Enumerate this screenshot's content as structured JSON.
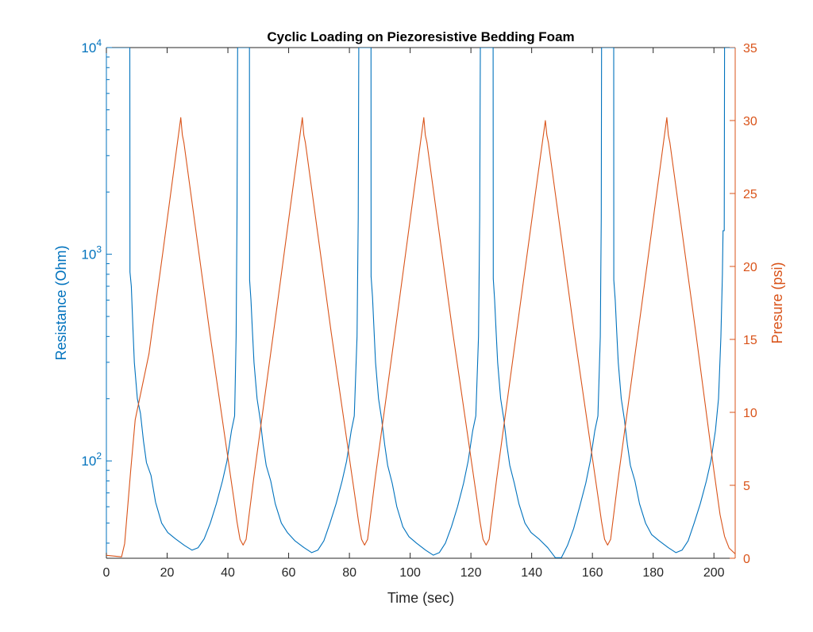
{
  "chart_data": {
    "type": "line",
    "title": "Cyclic Loading on Piezoresistive Bedding Foam",
    "xlabel": "Time (sec)",
    "ylabel_left": "Resistance (Ohm)",
    "ylabel_right": "Presure (psi)",
    "xlim": [
      0,
      207
    ],
    "ylim_left": [
      33.8,
      10000
    ],
    "yscale_left": "log",
    "ylim_right": [
      0,
      35
    ],
    "grid": false,
    "x_ticks": [
      "0",
      "20",
      "40",
      "60",
      "80",
      "100",
      "120",
      "140",
      "160",
      "180",
      "200"
    ],
    "x_tick_values": [
      0,
      20,
      40,
      60,
      80,
      100,
      120,
      140,
      160,
      180,
      200
    ],
    "left_ticks": [
      {
        "base": "10",
        "exp": "2",
        "value": 100
      },
      {
        "base": "10",
        "exp": "3",
        "value": 1000
      },
      {
        "base": "10",
        "exp": "4",
        "value": 10000
      }
    ],
    "right_ticks": [
      "0",
      "5",
      "10",
      "15",
      "20",
      "25",
      "30",
      "35"
    ],
    "right_tick_values": [
      0,
      5,
      10,
      15,
      20,
      25,
      30,
      35
    ],
    "colors": {
      "resistance": "#0072BD",
      "pressure": "#D95319",
      "axis": "#262626"
    },
    "series": [
      {
        "axis": "left",
        "color": "#0072BD",
        "points": [
          [
            0,
            10000
          ],
          [
            7.7,
            10000
          ],
          [
            7.75,
            820
          ],
          [
            8.2,
            700
          ],
          [
            8.7,
            450
          ],
          [
            9.2,
            300
          ],
          [
            10.2,
            200
          ],
          [
            11.2,
            170
          ],
          [
            12.2,
            125
          ],
          [
            13.2,
            98
          ],
          [
            14.7,
            85
          ],
          [
            16.2,
            63
          ],
          [
            18.2,
            50
          ],
          [
            20.2,
            45
          ],
          [
            22.7,
            42
          ],
          [
            25.7,
            39
          ],
          [
            28.2,
            37
          ],
          [
            30.2,
            38
          ],
          [
            32.2,
            42
          ],
          [
            34.2,
            50
          ],
          [
            36.2,
            62
          ],
          [
            38.2,
            80
          ],
          [
            39.7,
            100
          ],
          [
            41.2,
            140
          ],
          [
            42.2,
            165
          ],
          [
            42.7,
            400
          ],
          [
            43,
            1500
          ],
          [
            43.2,
            10000
          ],
          [
            47.1,
            10000
          ],
          [
            47.15,
            750
          ],
          [
            47.6,
            600
          ],
          [
            48.1,
            420
          ],
          [
            48.6,
            300
          ],
          [
            49.6,
            200
          ],
          [
            50.6,
            160
          ],
          [
            51.6,
            120
          ],
          [
            52.6,
            95
          ],
          [
            54.1,
            80
          ],
          [
            55.6,
            62
          ],
          [
            57.6,
            50
          ],
          [
            59.6,
            45
          ],
          [
            62.1,
            41
          ],
          [
            65.1,
            38
          ],
          [
            67.6,
            36
          ],
          [
            69.6,
            37
          ],
          [
            71.6,
            41
          ],
          [
            73.6,
            50
          ],
          [
            75.6,
            62
          ],
          [
            77.6,
            80
          ],
          [
            79.1,
            100
          ],
          [
            80.6,
            140
          ],
          [
            81.6,
            165
          ],
          [
            82.5,
            400
          ],
          [
            82.9,
            1500
          ],
          [
            83.1,
            10000
          ],
          [
            87.1,
            10000
          ],
          [
            87.15,
            780
          ],
          [
            87.6,
            620
          ],
          [
            88.1,
            430
          ],
          [
            88.6,
            300
          ],
          [
            89.6,
            200
          ],
          [
            90.6,
            160
          ],
          [
            91.6,
            120
          ],
          [
            92.6,
            95
          ],
          [
            94.1,
            78
          ],
          [
            95.6,
            60
          ],
          [
            97.6,
            48
          ],
          [
            99.6,
            43
          ],
          [
            102.1,
            40
          ],
          [
            105.1,
            37
          ],
          [
            107.6,
            35
          ],
          [
            109.6,
            36
          ],
          [
            111.6,
            40
          ],
          [
            113.6,
            48
          ],
          [
            115.6,
            60
          ],
          [
            117.6,
            78
          ],
          [
            119.1,
            100
          ],
          [
            120.6,
            140
          ],
          [
            121.6,
            165
          ],
          [
            122.5,
            400
          ],
          [
            122.9,
            1500
          ],
          [
            123.1,
            10000
          ],
          [
            127.3,
            10000
          ],
          [
            127.35,
            760
          ],
          [
            127.8,
            600
          ],
          [
            128.3,
            420
          ],
          [
            128.8,
            300
          ],
          [
            129.8,
            200
          ],
          [
            130.8,
            160
          ],
          [
            131.8,
            120
          ],
          [
            132.8,
            95
          ],
          [
            134.3,
            78
          ],
          [
            135.8,
            62
          ],
          [
            137.8,
            50
          ],
          [
            139.8,
            45
          ],
          [
            142.3,
            42
          ],
          [
            145.3,
            38
          ],
          [
            147.8,
            34
          ],
          [
            149.8,
            34
          ],
          [
            151.8,
            39
          ],
          [
            153.8,
            47
          ],
          [
            155.8,
            60
          ],
          [
            157.8,
            78
          ],
          [
            159.3,
            100
          ],
          [
            160.8,
            140
          ],
          [
            161.8,
            165
          ],
          [
            162.6,
            400
          ],
          [
            162.9,
            1500
          ],
          [
            163,
            10000
          ],
          [
            167,
            10000
          ],
          [
            167.05,
            750
          ],
          [
            167.5,
            600
          ],
          [
            168,
            420
          ],
          [
            168.5,
            300
          ],
          [
            169.5,
            200
          ],
          [
            170.5,
            160
          ],
          [
            171.5,
            120
          ],
          [
            172.5,
            95
          ],
          [
            174,
            80
          ],
          [
            175.5,
            62
          ],
          [
            177.5,
            50
          ],
          [
            179.5,
            44
          ],
          [
            182,
            41
          ],
          [
            185,
            38
          ],
          [
            187.5,
            36
          ],
          [
            189.5,
            37
          ],
          [
            191.5,
            41
          ],
          [
            193.5,
            50
          ],
          [
            195.5,
            62
          ],
          [
            197.5,
            80
          ],
          [
            199,
            100
          ],
          [
            200.5,
            140
          ],
          [
            201.5,
            200
          ],
          [
            202.3,
            400
          ],
          [
            202.8,
            800
          ],
          [
            203,
            1300
          ],
          [
            203.4,
            1300
          ],
          [
            203.5,
            10000
          ],
          [
            207,
            10000
          ]
        ]
      },
      {
        "axis": "right",
        "color": "#D95319",
        "points": [
          [
            0,
            0.2
          ],
          [
            5,
            0.1
          ],
          [
            6,
            1
          ],
          [
            7,
            3.5
          ],
          [
            8,
            6
          ],
          [
            9.5,
            9.5
          ],
          [
            14,
            14
          ],
          [
            18.6,
            21
          ],
          [
            24.5,
            30.2
          ],
          [
            25,
            29
          ],
          [
            25.5,
            28.5
          ],
          [
            34,
            15.5
          ],
          [
            42,
            4
          ],
          [
            43,
            2.5
          ],
          [
            44,
            1.3
          ],
          [
            45,
            0.9
          ],
          [
            46,
            1.3
          ],
          [
            47,
            3
          ],
          [
            48.5,
            5.5
          ],
          [
            56,
            17
          ],
          [
            64.5,
            30.2
          ],
          [
            65,
            29
          ],
          [
            65.5,
            28.5
          ],
          [
            74,
            15.5
          ],
          [
            82,
            4
          ],
          [
            83,
            2.5
          ],
          [
            84,
            1.3
          ],
          [
            85,
            0.9
          ],
          [
            86,
            1.3
          ],
          [
            87,
            3
          ],
          [
            88.5,
            5.5
          ],
          [
            96,
            17
          ],
          [
            104.5,
            30.2
          ],
          [
            105,
            29
          ],
          [
            105.5,
            28.5
          ],
          [
            114,
            15.5
          ],
          [
            122,
            4
          ],
          [
            123,
            2.5
          ],
          [
            124,
            1.3
          ],
          [
            125,
            0.9
          ],
          [
            126,
            1.3
          ],
          [
            127,
            3
          ],
          [
            128.5,
            5.5
          ],
          [
            136,
            17
          ],
          [
            144.5,
            30
          ],
          [
            145,
            29
          ],
          [
            145.5,
            28.5
          ],
          [
            154,
            15.5
          ],
          [
            162,
            4
          ],
          [
            163,
            2.5
          ],
          [
            164,
            1.3
          ],
          [
            165,
            0.9
          ],
          [
            166,
            1.3
          ],
          [
            167,
            3
          ],
          [
            168.5,
            5.5
          ],
          [
            176,
            17
          ],
          [
            184.5,
            30.2
          ],
          [
            185,
            29
          ],
          [
            185.5,
            28.5
          ],
          [
            194,
            15.5
          ],
          [
            200,
            6
          ],
          [
            202,
            3
          ],
          [
            203.5,
            1.5
          ],
          [
            205,
            0.7
          ],
          [
            207,
            0.3
          ]
        ]
      }
    ]
  }
}
